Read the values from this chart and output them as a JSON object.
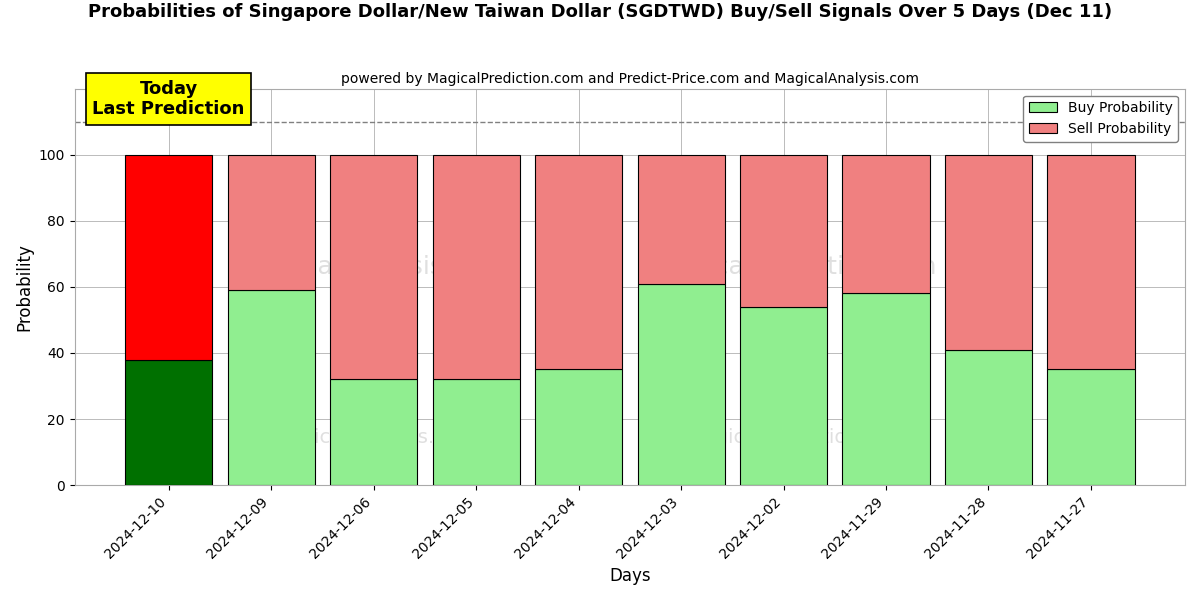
{
  "title": "Probabilities of Singapore Dollar/New Taiwan Dollar (SGDTWD) Buy/Sell Signals Over 5 Days (Dec 11)",
  "subtitle": "powered by MagicalPrediction.com and Predict-Price.com and MagicalAnalysis.com",
  "xlabel": "Days",
  "ylabel": "Probability",
  "categories": [
    "2024-12-10",
    "2024-12-09",
    "2024-12-06",
    "2024-12-05",
    "2024-12-04",
    "2024-12-03",
    "2024-12-02",
    "2024-11-29",
    "2024-11-28",
    "2024-11-27"
  ],
  "buy_values": [
    38,
    59,
    32,
    32,
    35,
    61,
    54,
    58,
    41,
    35
  ],
  "sell_values": [
    62,
    41,
    68,
    68,
    65,
    39,
    46,
    42,
    59,
    65
  ],
  "today_bar_buy_color": "#007000",
  "today_bar_sell_color": "#ff0000",
  "other_bar_buy_color": "#90EE90",
  "other_bar_sell_color": "#F08080",
  "bar_edgecolor": "#000000",
  "annotation_text": "Today\nLast Prediction",
  "annotation_bg_color": "#ffff00",
  "dashed_line_y": 110,
  "ylim": [
    0,
    120
  ],
  "yticks": [
    0,
    20,
    40,
    60,
    80,
    100
  ],
  "legend_buy_label": "Buy Probability",
  "legend_sell_label": "Sell Probability",
  "background_color": "#ffffff",
  "grid_color": "#bbbbbb",
  "bar_width": 0.85
}
